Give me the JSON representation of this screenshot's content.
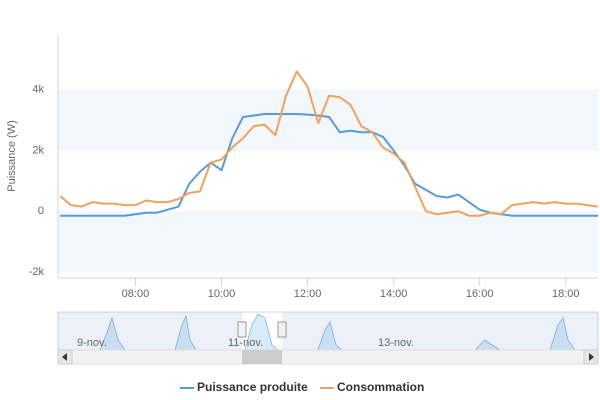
{
  "chart_data": {
    "type": "line",
    "y_label": "Puissance (W)",
    "x": [
      6.25,
      6.5,
      6.75,
      7.0,
      7.25,
      7.5,
      7.75,
      8.0,
      8.25,
      8.5,
      8.75,
      9.0,
      9.25,
      9.5,
      9.75,
      10.0,
      10.25,
      10.5,
      10.75,
      11.0,
      11.25,
      11.5,
      11.75,
      12.0,
      12.25,
      12.5,
      12.75,
      13.0,
      13.25,
      13.5,
      13.75,
      14.0,
      14.25,
      14.5,
      14.75,
      15.0,
      15.25,
      15.5,
      15.75,
      16.0,
      16.25,
      16.5,
      16.75,
      17.0,
      17.25,
      17.5,
      17.75,
      18.0,
      18.25,
      18.5,
      18.75
    ],
    "series": [
      {
        "name": "Puissance produite",
        "color": "#5b9bd5",
        "values": [
          -150,
          -150,
          -150,
          -150,
          -150,
          -150,
          -150,
          -100,
          -50,
          -50,
          50,
          150,
          900,
          1300,
          1600,
          1350,
          2400,
          3100,
          3150,
          3200,
          3200,
          3200,
          3200,
          3180,
          3150,
          3100,
          2600,
          2650,
          2600,
          2600,
          2450,
          2000,
          1500,
          900,
          700,
          500,
          450,
          550,
          300,
          50,
          -50,
          -100,
          -150,
          -150,
          -150,
          -150,
          -150,
          -150,
          -150,
          -150,
          -150
        ]
      },
      {
        "name": "Consommation",
        "color": "#f0a160",
        "values": [
          500,
          200,
          150,
          300,
          250,
          250,
          200,
          200,
          350,
          300,
          300,
          400,
          600,
          650,
          1600,
          1700,
          2100,
          2400,
          2800,
          2850,
          2500,
          3800,
          4600,
          4100,
          2900,
          3800,
          3750,
          3500,
          2800,
          2600,
          2100,
          1900,
          1600,
          800,
          0,
          -100,
          -50,
          0,
          -150,
          -150,
          -50,
          -100,
          200,
          250,
          300,
          250,
          300,
          250,
          250,
          200,
          150
        ]
      }
    ],
    "xlim": [
      6.2,
      18.75
    ],
    "xticks": [
      {
        "value": 8,
        "label": "08:00"
      },
      {
        "value": 10,
        "label": "10:00"
      },
      {
        "value": 12,
        "label": "12:00"
      },
      {
        "value": 14,
        "label": "14:00"
      },
      {
        "value": 16,
        "label": "16:00"
      },
      {
        "value": 18,
        "label": "18:00"
      }
    ],
    "ylim": [
      -2200,
      5800
    ],
    "yticks": [
      {
        "value": -2000,
        "label": "-2k"
      },
      {
        "value": 0,
        "label": "0"
      },
      {
        "value": 2000,
        "label": "2k"
      },
      {
        "value": 4000,
        "label": "4k"
      }
    ],
    "bands": true,
    "navigator_labels": [
      "9-nov.",
      "11-nov.",
      "13-nov."
    ]
  }
}
